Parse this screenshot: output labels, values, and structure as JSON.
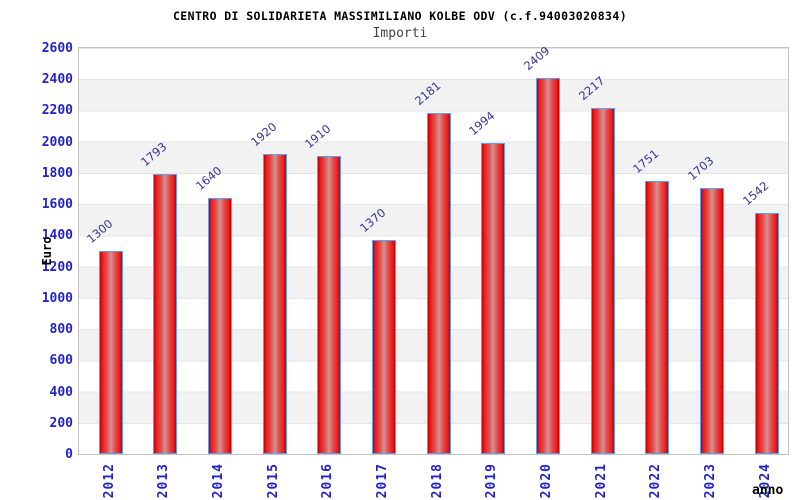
{
  "title": "CENTRO DI SOLIDARIETA MASSIMILIANO KOLBE ODV (c.f.94003020834)",
  "subtitle": "Importi",
  "chart_data": {
    "type": "bar",
    "title": "CENTRO DI SOLIDARIETA MASSIMILIANO KOLBE ODV (c.f.94003020834)",
    "subtitle": "Importi",
    "categories": [
      "2012",
      "2013",
      "2014",
      "2015",
      "2016",
      "2017",
      "2018",
      "2019",
      "2020",
      "2021",
      "2022",
      "2023",
      "2024"
    ],
    "values": [
      1300,
      1793,
      1640,
      1920,
      1910,
      1370,
      2181,
      1994,
      2409,
      2217,
      1751,
      1703,
      1542
    ],
    "xlabel": "anno",
    "ylabel": "Euro",
    "ylim": [
      0,
      2600
    ],
    "yticks": [
      0,
      200,
      400,
      600,
      800,
      1000,
      1200,
      1400,
      1600,
      1800,
      2000,
      2200,
      2400,
      2600
    ],
    "grid": "on",
    "legend_position": "none",
    "colors": {
      "tick_label": "#2222cc",
      "value_label": "#34349c",
      "bar_border": "#58a0f8",
      "bar_edge": "#c40000",
      "bar_bright": "#ee1e1e",
      "bar_mid": "#e04a4a",
      "bar_center": "#d89090",
      "band_light": "#ffffff",
      "band_dark": "#f2f2f2",
      "grid_line": "#e5e5e5",
      "plot_border": "#c4c4c4"
    }
  }
}
